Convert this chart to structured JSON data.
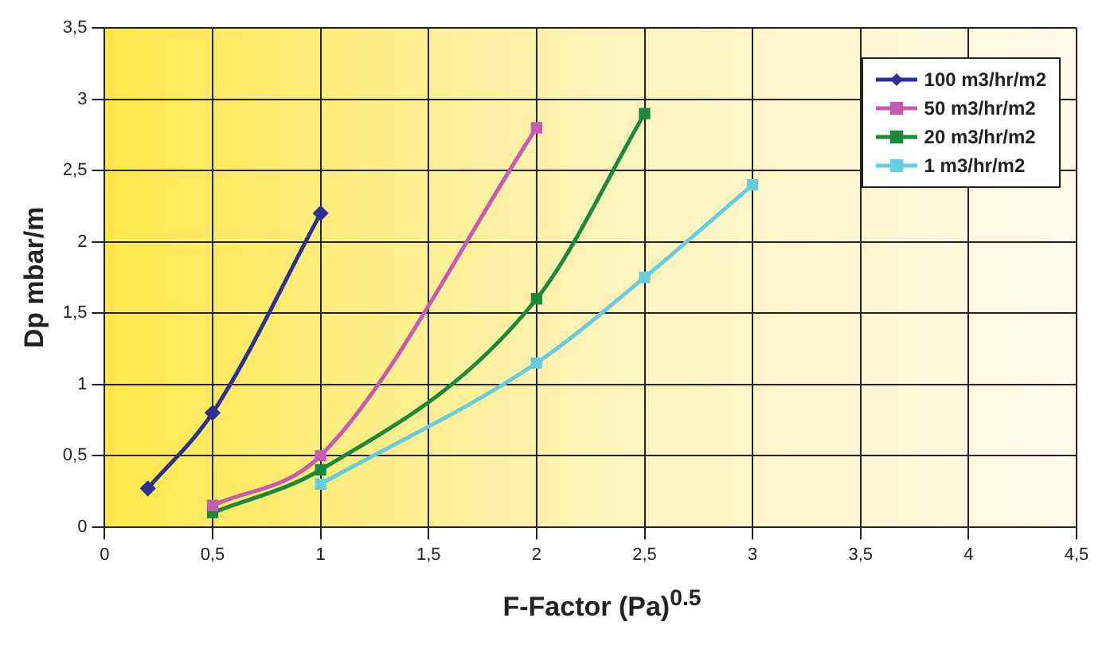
{
  "chart_data": {
    "type": "line",
    "xlabel": "F-Factor (Pa)$^{0.5}$",
    "ylabel": "Dp mbar/m",
    "series": [
      {
        "name": "100 m3/hr/m2",
        "color": "#2e3192",
        "marker": "diamond",
        "x": [
          0.2,
          0.5,
          1
        ],
        "values": [
          0.27,
          0.8,
          2.2
        ]
      },
      {
        "name": "50 m3/hr/m2",
        "color": "#c45cb4",
        "marker": "square",
        "x": [
          0.5,
          1,
          2
        ],
        "values": [
          0.15,
          0.5,
          2.8
        ]
      },
      {
        "name": "20 m3/hr/m2",
        "color": "#1b8a3c",
        "marker": "square",
        "x": [
          0.5,
          1,
          2,
          2.5
        ],
        "values": [
          0.1,
          0.4,
          1.6,
          2.9
        ]
      },
      {
        "name": "1 m3/hr/m2",
        "color": "#66cce0",
        "marker": "square",
        "x": [
          1,
          2,
          2.5,
          3
        ],
        "values": [
          0.3,
          1.15,
          1.75,
          2.4
        ]
      }
    ],
    "xlim": [
      0,
      4.5
    ],
    "xticks": [
      0,
      {
        "value": 0.5,
        "label": "0,5"
      },
      1,
      {
        "value": 1.5,
        "label": "1,5"
      },
      2,
      {
        "value": 2.5,
        "label": "2,5"
      },
      3,
      {
        "value": 3.5,
        "label": "3,5"
      },
      4,
      {
        "value": 4.5,
        "label": "4,5"
      }
    ],
    "ylim": [
      0,
      3.5
    ],
    "yticks": [
      0,
      {
        "value": 0.5,
        "label": "0,5"
      },
      1,
      {
        "value": 1.5,
        "label": "1,5"
      },
      2,
      {
        "value": 2.5,
        "label": "2,5"
      },
      3,
      {
        "value": 3.5,
        "label": "3,5"
      }
    ],
    "grid": true,
    "legend": "top right"
  }
}
